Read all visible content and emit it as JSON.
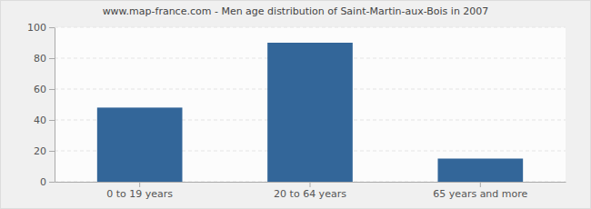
{
  "chart_data": {
    "type": "bar",
    "title": "www.map-france.com - Men age distribution of Saint-Martin-aux-Bois in 2007",
    "categories": [
      "0 to 19 years",
      "20 to 64 years",
      "65 years and more"
    ],
    "values": [
      48,
      90,
      15
    ],
    "color": "#336699",
    "ylim": [
      0,
      100
    ],
    "yticks": [
      0,
      20,
      40,
      60,
      80,
      100
    ],
    "grid": true
  }
}
